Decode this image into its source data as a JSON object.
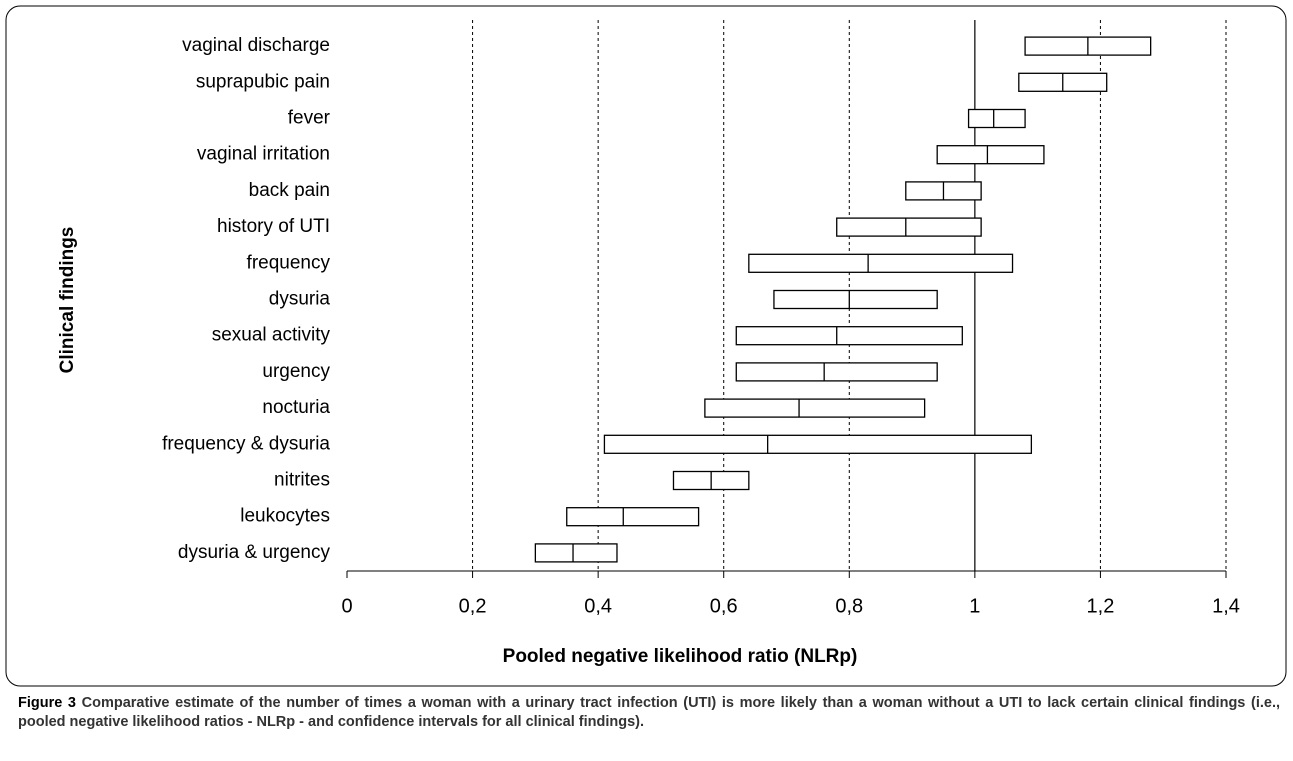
{
  "chart_data": {
    "type": "interval",
    "x_label": "Pooled negative likelihood ratio (NLRp)",
    "y_label": "Clinical findings",
    "categories": [
      "vaginal discharge",
      "suprapubic pain",
      "fever",
      "vaginal irritation",
      "back pain",
      "history of UTI",
      "frequency",
      "dysuria",
      "sexual activity",
      "urgency",
      "nocturia",
      "frequency & dysuria",
      "nitrites",
      "leukocytes",
      "dysuria & urgency"
    ],
    "low": [
      1.08,
      1.07,
      0.99,
      0.94,
      0.89,
      0.78,
      0.64,
      0.68,
      0.62,
      0.62,
      0.57,
      0.41,
      0.52,
      0.35,
      0.3
    ],
    "values": [
      1.18,
      1.14,
      1.03,
      1.02,
      0.95,
      0.89,
      0.83,
      0.8,
      0.78,
      0.76,
      0.72,
      0.67,
      0.58,
      0.44,
      0.36
    ],
    "high": [
      1.28,
      1.21,
      1.08,
      1.11,
      1.01,
      1.01,
      1.06,
      0.94,
      0.98,
      0.94,
      0.92,
      1.09,
      0.64,
      0.56,
      0.43
    ],
    "color": "#ffffff",
    "xlim": [
      0,
      1.4
    ],
    "xticks": [
      0,
      {
        "value": 0.2,
        "label": "0,2"
      },
      {
        "value": 0.4,
        "label": "0,4"
      },
      {
        "value": 0.6,
        "label": "0,6"
      },
      {
        "value": 0.8,
        "label": "0,8"
      },
      1,
      {
        "value": 1.2,
        "label": "1,2"
      },
      {
        "value": 1.4,
        "label": "1,4"
      }
    ],
    "reference_line": 1,
    "grid": true
  },
  "caption": {
    "label": "Figure 3",
    "text": "Comparative estimate of the number of times a woman with a urinary tract infection (UTI) is more likely than a woman without a UTI to lack certain clinical findings (i.e., pooled negative likelihood ratios - NLRp - and confidence intervals for all clinical findings)."
  }
}
